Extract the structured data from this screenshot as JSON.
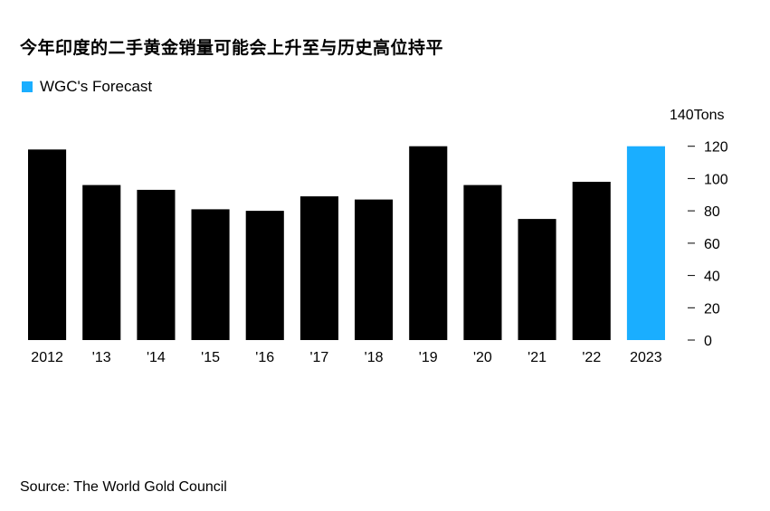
{
  "title": "今年印度的二手黄金销量可能会上升至与历史高位持平",
  "legend": {
    "label": "WGC's Forecast",
    "color": "#1aaeff"
  },
  "source": "Source: The World Gold Council",
  "chart_data": {
    "type": "bar",
    "categories": [
      "2012",
      "'13",
      "'14",
      "'15",
      "'16",
      "'17",
      "'18",
      "'19",
      "'20",
      "'21",
      "'22",
      "2023"
    ],
    "values": [
      118,
      96,
      93,
      81,
      80,
      89,
      87,
      120,
      96,
      75,
      98,
      120
    ],
    "forecast_index": 11,
    "bar_color": "#000000",
    "forecast_color": "#1aaeff",
    "ylim": [
      0,
      140
    ],
    "yticks": [
      0,
      20,
      40,
      60,
      80,
      100,
      120
    ],
    "ytick_labels": [
      "0",
      "20",
      "40",
      "60",
      "80",
      "100",
      "120"
    ],
    "y_top_label": "140",
    "yunit": "Tons",
    "yaxis_position": "right",
    "grid": false
  }
}
